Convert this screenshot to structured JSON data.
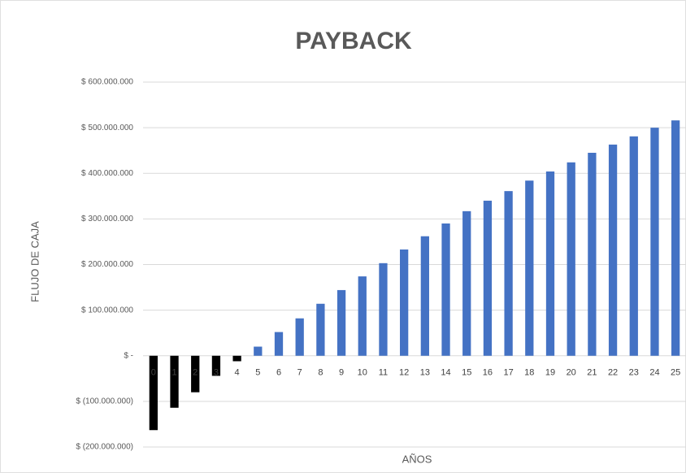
{
  "chart_data": {
    "type": "bar",
    "title": "PAYBACK",
    "y_label": "FLUJO DE CAJA",
    "x_label": "AÑOS",
    "categories": [
      "0",
      "1",
      "2",
      "3",
      "4",
      "5",
      "6",
      "7",
      "8",
      "9",
      "10",
      "11",
      "12",
      "13",
      "14",
      "15",
      "16",
      "17",
      "18",
      "19",
      "20",
      "21",
      "22",
      "23",
      "24",
      "25"
    ],
    "values": [
      -163000000,
      -114000000,
      -80000000,
      -44000000,
      -12000000,
      20000000,
      52000000,
      82000000,
      114000000,
      144000000,
      174000000,
      203000000,
      233000000,
      262000000,
      290000000,
      317000000,
      340000000,
      361000000,
      384000000,
      404000000,
      424000000,
      445000000,
      463000000,
      481000000,
      500000000,
      516000000
    ],
    "colors": [
      "#000000",
      "#000000",
      "#000000",
      "#000000",
      "#000000",
      "#4472c4",
      "#4472c4",
      "#4472c4",
      "#4472c4",
      "#4472c4",
      "#4472c4",
      "#4472c4",
      "#4472c4",
      "#4472c4",
      "#4472c4",
      "#4472c4",
      "#4472c4",
      "#4472c4",
      "#4472c4",
      "#4472c4",
      "#4472c4",
      "#4472c4",
      "#4472c4",
      "#4472c4",
      "#4472c4",
      "#4472c4"
    ],
    "ylim": [
      -200000000,
      600000000
    ],
    "yticks": [
      {
        "value": -200000000,
        "label": "$ (200.000.000)"
      },
      {
        "value": -100000000,
        "label": "$ (100.000.000)"
      },
      {
        "value": 0,
        "label": "$ -"
      },
      {
        "value": 100000000,
        "label": "$ 100.000.000"
      },
      {
        "value": 200000000,
        "label": "$ 200.000.000"
      },
      {
        "value": 300000000,
        "label": "$ 300.000.000"
      },
      {
        "value": 400000000,
        "label": "$ 400.000.000"
      },
      {
        "value": 500000000,
        "label": "$ 500.000.000"
      },
      {
        "value": 600000000,
        "label": "$ 600.000.000"
      }
    ],
    "grid": true
  }
}
